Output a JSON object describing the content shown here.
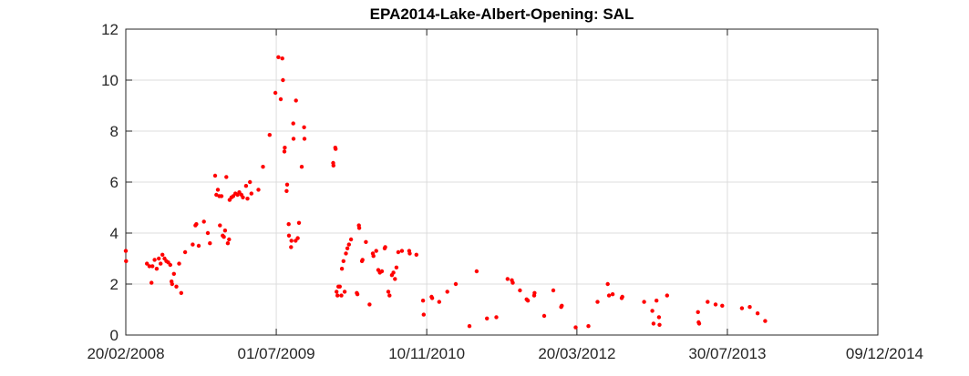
{
  "chart_data": {
    "type": "scatter",
    "title": "EPA2014-Lake-Albert-Opening: SAL",
    "xlabel": "",
    "ylabel": "",
    "xlim": [
      "20/02/2008",
      "09/12/2014"
    ],
    "ylim": [
      0,
      12
    ],
    "x_ticks": [
      "20/02/2008",
      "01/07/2009",
      "10/11/2010",
      "20/03/2012",
      "30/07/2013",
      "09/12/2014"
    ],
    "y_ticks": [
      "0",
      "2",
      "4",
      "6",
      "8",
      "10",
      "12"
    ],
    "grid": true,
    "marker_color": "#ff0000",
    "series": [
      {
        "points": [
          [
            "2008-02-20",
            3.3
          ],
          [
            "2008-02-21",
            2.9
          ],
          [
            "2008-04-30",
            2.8
          ],
          [
            "2008-05-08",
            2.7
          ],
          [
            "2008-05-15",
            2.05
          ],
          [
            "2008-05-18",
            2.7
          ],
          [
            "2008-05-25",
            2.95
          ],
          [
            "2008-06-01",
            2.6
          ],
          [
            "2008-06-08",
            3.0
          ],
          [
            "2008-06-14",
            2.8
          ],
          [
            "2008-06-20",
            3.15
          ],
          [
            "2008-06-27",
            3.0
          ],
          [
            "2008-07-03",
            2.9
          ],
          [
            "2008-07-09",
            2.85
          ],
          [
            "2008-07-16",
            2.75
          ],
          [
            "2008-07-20",
            2.1
          ],
          [
            "2008-07-22",
            2.0
          ],
          [
            "2008-07-28",
            2.4
          ],
          [
            "2008-08-05",
            1.9
          ],
          [
            "2008-08-14",
            2.8
          ],
          [
            "2008-08-21",
            1.65
          ],
          [
            "2008-09-03",
            3.25
          ],
          [
            "2008-09-28",
            3.55
          ],
          [
            "2008-10-07",
            4.3
          ],
          [
            "2008-10-10",
            4.35
          ],
          [
            "2008-10-18",
            3.5
          ],
          [
            "2008-11-04",
            4.45
          ],
          [
            "2008-11-17",
            4.0
          ],
          [
            "2008-11-24",
            3.6
          ],
          [
            "2008-12-11",
            6.25
          ],
          [
            "2008-12-15",
            5.5
          ],
          [
            "2008-12-20",
            5.7
          ],
          [
            "2008-12-25",
            5.45
          ],
          [
            "2008-12-27",
            4.3
          ],
          [
            "2009-01-01",
            5.45
          ],
          [
            "2009-01-05",
            3.9
          ],
          [
            "2009-01-09",
            3.85
          ],
          [
            "2009-01-13",
            4.1
          ],
          [
            "2009-01-17",
            6.2
          ],
          [
            "2009-01-22",
            3.6
          ],
          [
            "2009-01-26",
            3.75
          ],
          [
            "2009-01-28",
            5.3
          ],
          [
            "2009-02-03",
            5.4
          ],
          [
            "2009-02-09",
            5.45
          ],
          [
            "2009-02-16",
            5.55
          ],
          [
            "2009-02-23",
            5.5
          ],
          [
            "2009-03-01",
            5.6
          ],
          [
            "2009-03-08",
            5.5
          ],
          [
            "2009-03-13",
            5.4
          ],
          [
            "2009-03-23",
            5.85
          ],
          [
            "2009-03-28",
            5.35
          ],
          [
            "2009-04-05",
            6.0
          ],
          [
            "2009-04-10",
            5.55
          ],
          [
            "2009-05-03",
            5.7
          ],
          [
            "2009-05-18",
            6.6
          ],
          [
            "2009-06-09",
            7.85
          ],
          [
            "2009-06-28",
            9.5
          ],
          [
            "2009-07-08",
            10.9
          ],
          [
            "2009-07-16",
            9.25
          ],
          [
            "2009-07-21",
            10.85
          ],
          [
            "2009-07-23",
            10.0
          ],
          [
            "2009-07-28",
            7.2
          ],
          [
            "2009-07-29",
            7.35
          ],
          [
            "2009-08-04",
            5.65
          ],
          [
            "2009-08-06",
            5.9
          ],
          [
            "2009-08-11",
            4.35
          ],
          [
            "2009-08-12",
            3.9
          ],
          [
            "2009-08-19",
            3.45
          ],
          [
            "2009-08-20",
            3.7
          ],
          [
            "2009-08-26",
            8.3
          ],
          [
            "2009-08-27",
            7.7
          ],
          [
            "2009-09-03",
            3.7
          ],
          [
            "2009-09-04",
            9.2
          ],
          [
            "2009-09-10",
            3.8
          ],
          [
            "2009-09-14",
            4.4
          ],
          [
            "2009-09-23",
            6.6
          ],
          [
            "2009-10-01",
            8.15
          ],
          [
            "2009-10-02",
            7.7
          ],
          [
            "2010-01-05",
            6.75
          ],
          [
            "2010-01-06",
            6.65
          ],
          [
            "2010-01-12",
            7.35
          ],
          [
            "2010-01-13",
            7.3
          ],
          [
            "2010-01-16",
            1.7
          ],
          [
            "2010-01-19",
            1.55
          ],
          [
            "2010-01-22",
            1.9
          ],
          [
            "2010-01-27",
            1.9
          ],
          [
            "2010-02-01",
            1.55
          ],
          [
            "2010-02-03",
            2.6
          ],
          [
            "2010-02-08",
            2.9
          ],
          [
            "2010-02-12",
            1.7
          ],
          [
            "2010-02-16",
            3.2
          ],
          [
            "2010-02-21",
            3.4
          ],
          [
            "2010-02-26",
            3.55
          ],
          [
            "2010-03-05",
            3.75
          ],
          [
            "2010-03-24",
            1.65
          ],
          [
            "2010-03-26",
            1.6
          ],
          [
            "2010-03-31",
            4.3
          ],
          [
            "2010-04-01",
            4.2
          ],
          [
            "2010-04-10",
            2.9
          ],
          [
            "2010-04-12",
            2.95
          ],
          [
            "2010-04-23",
            3.65
          ],
          [
            "2010-05-05",
            1.2
          ],
          [
            "2010-05-16",
            3.2
          ],
          [
            "2010-05-18",
            3.1
          ],
          [
            "2010-05-27",
            3.3
          ],
          [
            "2010-06-03",
            2.55
          ],
          [
            "2010-06-08",
            2.45
          ],
          [
            "2010-06-15",
            2.5
          ],
          [
            "2010-06-24",
            3.4
          ],
          [
            "2010-06-26",
            3.45
          ],
          [
            "2010-07-06",
            1.7
          ],
          [
            "2010-07-10",
            1.55
          ],
          [
            "2010-07-18",
            2.35
          ],
          [
            "2010-07-23",
            2.45
          ],
          [
            "2010-07-28",
            2.2
          ],
          [
            "2010-08-02",
            2.65
          ],
          [
            "2010-08-08",
            3.25
          ],
          [
            "2010-08-20",
            3.3
          ],
          [
            "2010-09-13",
            3.3
          ],
          [
            "2010-09-15",
            3.2
          ],
          [
            "2010-10-07",
            3.15
          ],
          [
            "2010-10-29",
            1.35
          ],
          [
            "2010-10-31",
            0.8
          ],
          [
            "2010-11-26",
            1.5
          ],
          [
            "2010-11-28",
            1.45
          ],
          [
            "2010-12-21",
            1.3
          ],
          [
            "2011-01-17",
            1.7
          ],
          [
            "2011-02-14",
            2.0
          ],
          [
            "2011-03-31",
            0.35
          ],
          [
            "2011-04-24",
            2.5
          ],
          [
            "2011-05-28",
            0.65
          ],
          [
            "2011-06-28",
            0.7
          ],
          [
            "2011-08-04",
            2.2
          ],
          [
            "2011-08-18",
            2.15
          ],
          [
            "2011-08-21",
            2.05
          ],
          [
            "2011-09-14",
            1.75
          ],
          [
            "2011-10-06",
            1.4
          ],
          [
            "2011-10-10",
            1.35
          ],
          [
            "2011-10-31",
            1.55
          ],
          [
            "2011-11-01",
            1.65
          ],
          [
            "2011-12-03",
            0.75
          ],
          [
            "2012-01-02",
            1.75
          ],
          [
            "2012-01-28",
            1.1
          ],
          [
            "2012-01-30",
            1.15
          ],
          [
            "2012-03-16",
            0.3
          ],
          [
            "2012-04-27",
            0.35
          ],
          [
            "2012-05-27",
            1.3
          ],
          [
            "2012-06-30",
            2.0
          ],
          [
            "2012-07-04",
            1.55
          ],
          [
            "2012-07-16",
            1.6
          ],
          [
            "2012-08-15",
            1.45
          ],
          [
            "2012-08-17",
            1.5
          ],
          [
            "2012-10-28",
            1.3
          ],
          [
            "2012-11-24",
            0.95
          ],
          [
            "2012-11-28",
            0.45
          ],
          [
            "2012-12-08",
            1.35
          ],
          [
            "2012-12-16",
            0.7
          ],
          [
            "2012-12-18",
            0.4
          ],
          [
            "2013-01-12",
            1.55
          ],
          [
            "2013-04-24",
            0.9
          ],
          [
            "2013-04-26",
            0.5
          ],
          [
            "2013-04-28",
            0.45
          ],
          [
            "2013-05-26",
            1.3
          ],
          [
            "2013-06-21",
            1.2
          ],
          [
            "2013-07-13",
            1.15
          ],
          [
            "2013-09-16",
            1.05
          ],
          [
            "2013-10-12",
            1.1
          ],
          [
            "2013-11-07",
            0.85
          ],
          [
            "2013-12-02",
            0.55
          ]
        ]
      }
    ]
  }
}
